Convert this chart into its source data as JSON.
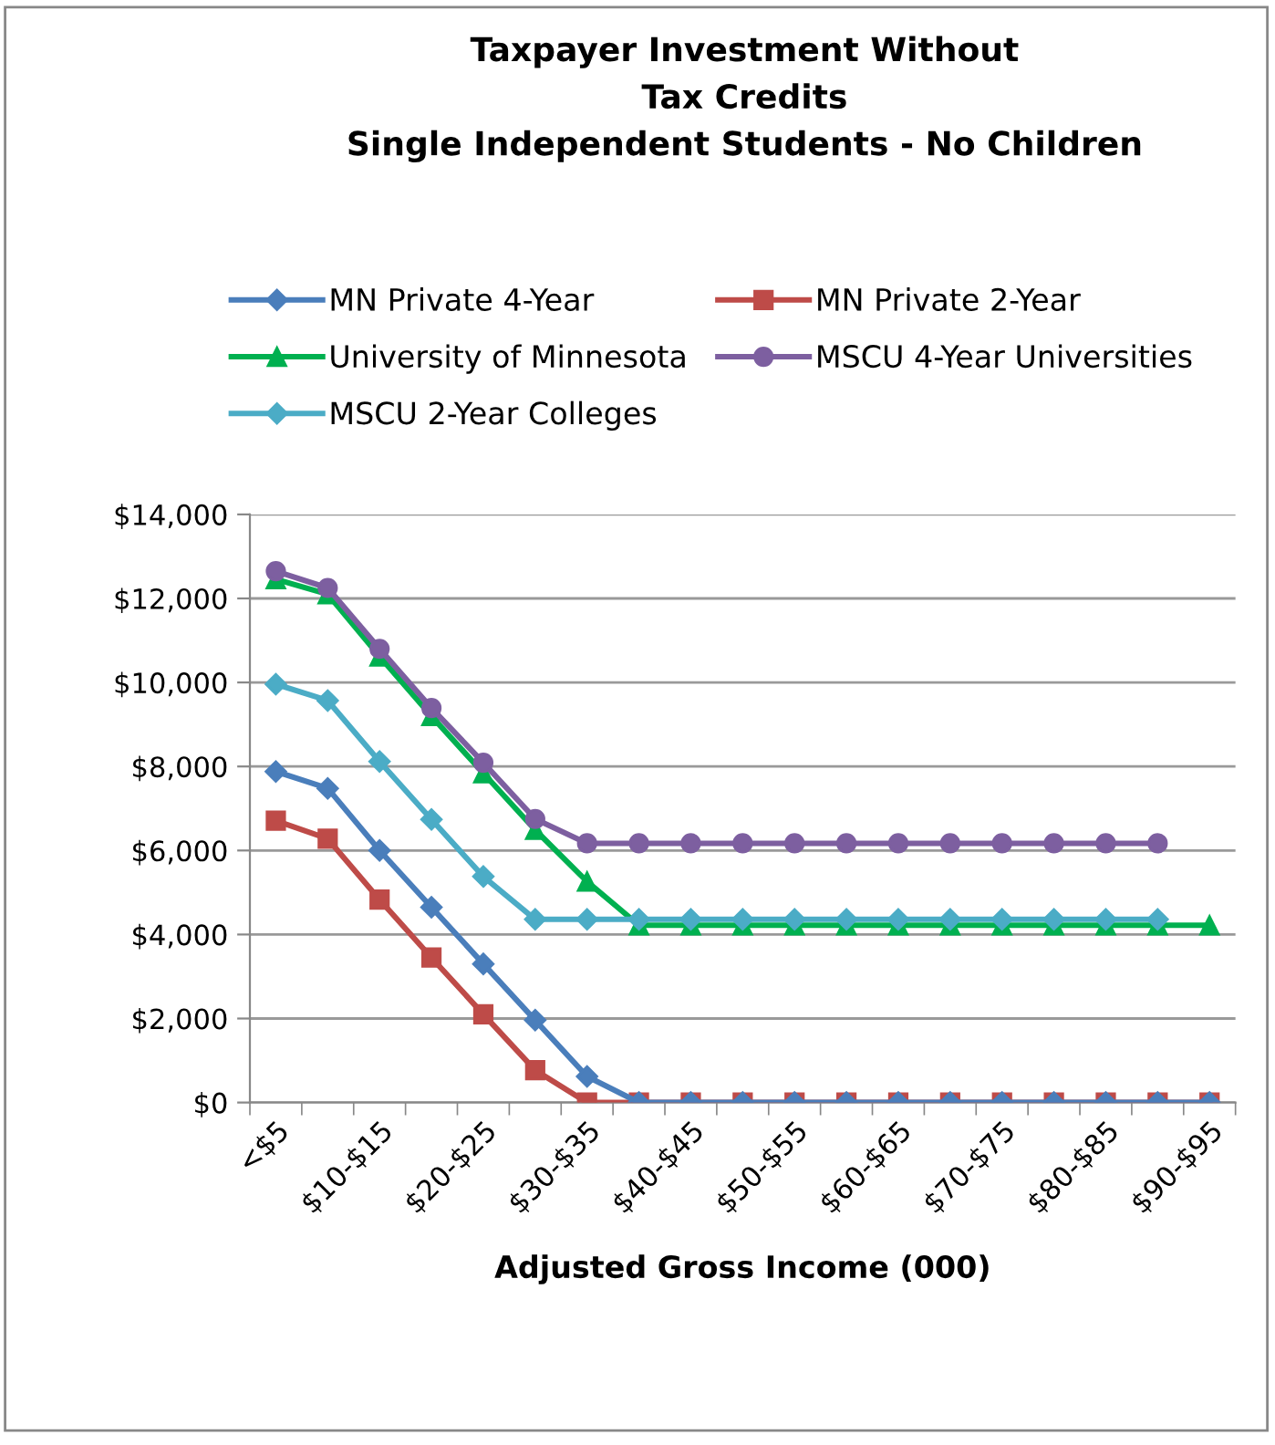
{
  "chart_data": {
    "type": "line",
    "title": "Taxpayer Investment Without\nTax Credits\nSingle Independent Students - No Children",
    "xlabel": "Adjusted Gross Income (000)",
    "categories": [
      "<$5",
      null,
      "$10-$15",
      null,
      "$20-$25",
      null,
      "$30-$35",
      null,
      "$40-$45",
      null,
      "$50-$55",
      null,
      "$60-$65",
      null,
      "$70-$75",
      null,
      "$80-$85",
      null,
      "$90-$95"
    ],
    "ylim": [
      0,
      14000
    ],
    "yticks": [
      {
        "value": 0,
        "label": "$0"
      },
      {
        "value": 2000,
        "label": "$2,000"
      },
      {
        "value": 4000,
        "label": "$4,000"
      },
      {
        "value": 6000,
        "label": "$6,000"
      },
      {
        "value": 8000,
        "label": "$8,000"
      },
      {
        "value": 10000,
        "label": "$10,000"
      },
      {
        "value": 12000,
        "label": "$12,000"
      },
      {
        "value": 14000,
        "label": "$14,000"
      }
    ],
    "grid": "y",
    "legend": "top",
    "line_style": "solid",
    "series": [
      {
        "name": "MN Private 4-Year",
        "color": "#4a7ebb",
        "marker": "diamond",
        "values": [
          7880,
          7480,
          6000,
          4650,
          3300,
          1960,
          620,
          0,
          0,
          0,
          0,
          0,
          0,
          0,
          0,
          0,
          0,
          0,
          0
        ]
      },
      {
        "name": "MN Private 2-Year",
        "color": "#be4b48",
        "marker": "square",
        "values": [
          6710,
          6280,
          4830,
          3450,
          2100,
          770,
          0,
          0,
          0,
          0,
          0,
          0,
          0,
          0,
          0,
          0,
          0,
          0,
          0
        ]
      },
      {
        "name": "University of Minnesota",
        "color": "#00b050",
        "marker": "triangle",
        "values": [
          12460,
          12100,
          10620,
          9200,
          7840,
          6490,
          5260,
          4220,
          4220,
          4220,
          4220,
          4220,
          4220,
          4220,
          4220,
          4220,
          4220,
          4220,
          4220
        ]
      },
      {
        "name": "MSCU 4-Year Universities",
        "color": "#7d5fa0",
        "marker": "circle",
        "values": [
          12650,
          12250,
          10800,
          9390,
          8090,
          6750,
          6170,
          6170,
          6170,
          6170,
          6170,
          6170,
          6170,
          6170,
          6170,
          6170,
          6170,
          6170,
          null
        ]
      },
      {
        "name": "MSCU 2-Year Colleges",
        "color": "#4bacc6",
        "marker": "diamond",
        "values": [
          9960,
          9570,
          8120,
          6740,
          5380,
          4360,
          4360,
          4360,
          4360,
          4360,
          4360,
          4360,
          4360,
          4360,
          4360,
          4360,
          4360,
          4360,
          null
        ]
      }
    ]
  }
}
